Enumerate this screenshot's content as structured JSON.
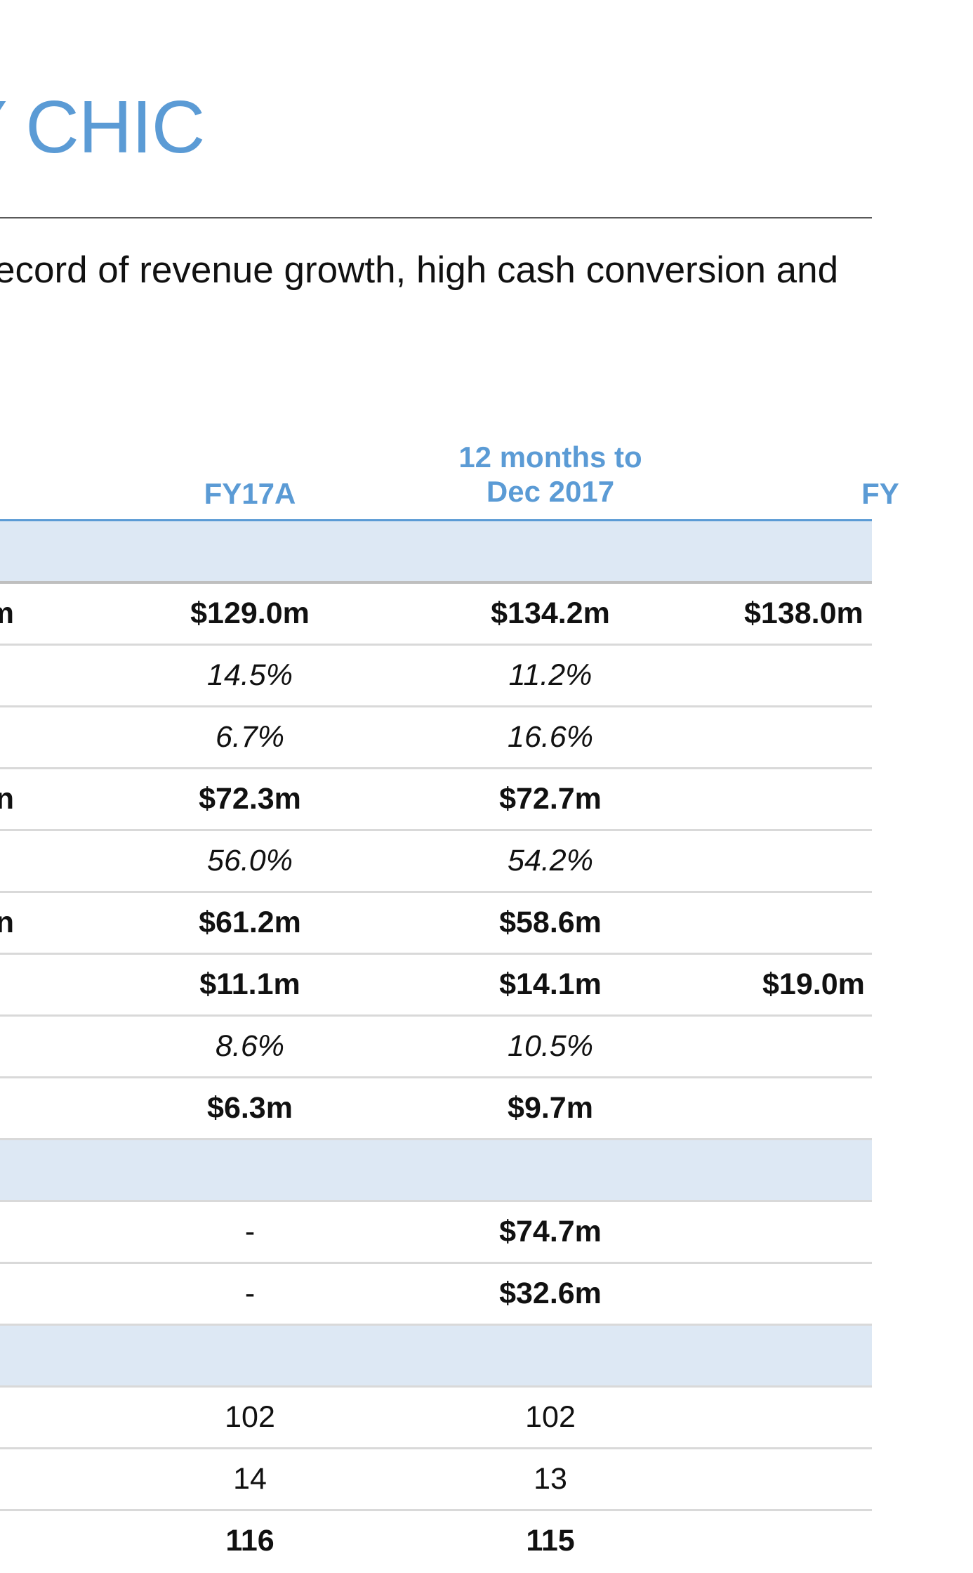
{
  "title": "Y CHIC",
  "subtitle": "ecord of revenue growth, high cash conversion and",
  "columns": {
    "fy17a": "FY17A",
    "dec2017_line1": "12 months to",
    "dec2017_line2": "Dec 2017",
    "fy_partial": "FY"
  },
  "rows": [
    {
      "left": "m",
      "fy17a": "$129.0m",
      "dec2017": "$134.2m",
      "fy": "$138.0m"
    },
    {
      "left": "",
      "fy17a": "14.5%",
      "dec2017": "11.2%",
      "fy": ""
    },
    {
      "left": "",
      "fy17a": "6.7%",
      "dec2017": "16.6%",
      "fy": ""
    },
    {
      "left": "n",
      "fy17a": "$72.3m",
      "dec2017": "$72.7m",
      "fy": ""
    },
    {
      "left": "",
      "fy17a": "56.0%",
      "dec2017": "54.2%",
      "fy": ""
    },
    {
      "left": "n",
      "fy17a": "$61.2m",
      "dec2017": "$58.6m",
      "fy": ""
    },
    {
      "left": "",
      "fy17a": "$11.1m",
      "dec2017": "$14.1m",
      "fy": "$19.0m"
    },
    {
      "left": "",
      "fy17a": "8.6%",
      "dec2017": "10.5%",
      "fy": ""
    },
    {
      "left": "",
      "fy17a": "$6.3m",
      "dec2017": "$9.7m",
      "fy": ""
    },
    {
      "left": "",
      "fy17a": "-",
      "dec2017": "$74.7m",
      "fy": ""
    },
    {
      "left": "",
      "fy17a": "-",
      "dec2017": "$32.6m",
      "fy": ""
    },
    {
      "left": "",
      "fy17a": "102",
      "dec2017": "102",
      "fy": ""
    },
    {
      "left": "",
      "fy17a": "14",
      "dec2017": "13",
      "fy": ""
    },
    {
      "left": "",
      "fy17a": "116",
      "dec2017": "115",
      "fy": ""
    }
  ]
}
